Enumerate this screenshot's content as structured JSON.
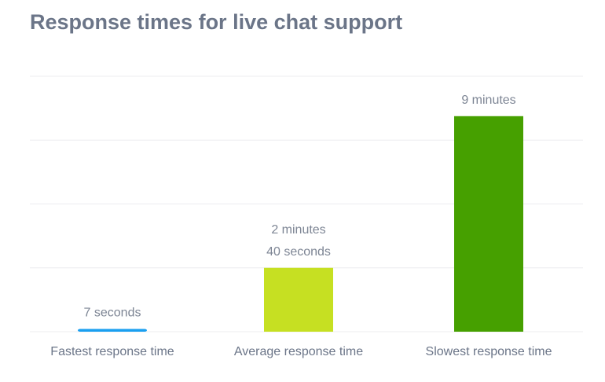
{
  "chart_data": {
    "type": "bar",
    "title": "Response times for live chat support",
    "categories": [
      "Fastest response time",
      "Average response time",
      "Slowest response time"
    ],
    "values": [
      7,
      160,
      540
    ],
    "value_labels": [
      "7 seconds",
      [
        "2 minutes",
        "40 seconds"
      ],
      "9 minutes"
    ],
    "colors": [
      "#1a9ff0",
      "#c6e022",
      "#46a000"
    ],
    "ylim": [
      0,
      640
    ],
    "yticks": [
      0,
      160,
      320,
      480,
      640
    ],
    "grid": true
  }
}
